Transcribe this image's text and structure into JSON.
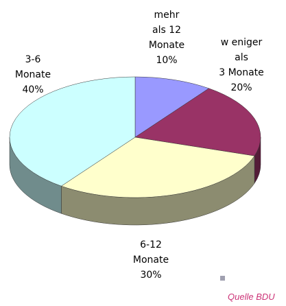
{
  "chart_data": {
    "type": "pie3d",
    "categories": [
      "mehr\nals 12\nMonate",
      "w eniger\nals\n3 Monate",
      "6-12\nMonate",
      "3-6\nMonate"
    ],
    "values": [
      10,
      20,
      30,
      40
    ],
    "value_labels": [
      "10%",
      "20%",
      "30%",
      "40%"
    ],
    "colors": [
      "#9999ff",
      "#993366",
      "#ffffcc",
      "#ccffff"
    ],
    "annotation": "Quelle BDU"
  }
}
